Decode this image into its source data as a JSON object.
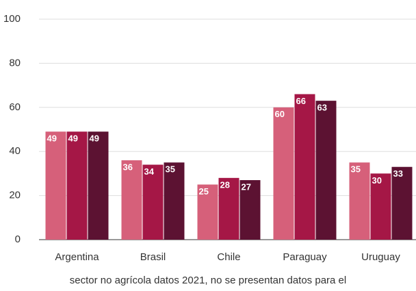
{
  "chart_data": {
    "type": "bar",
    "categories": [
      "Argentina",
      "Brasil",
      "Chile",
      "Paraguay",
      "Uruguay"
    ],
    "series": [
      {
        "color": "#d6607a",
        "values": [
          49,
          36,
          25,
          60,
          35
        ]
      },
      {
        "color": "#a51746",
        "values": [
          49,
          34,
          28,
          66,
          30
        ]
      },
      {
        "color": "#5c1232",
        "values": [
          49,
          35,
          27,
          63,
          33
        ]
      }
    ],
    "ylim": [
      0,
      100
    ],
    "yticks": [
      0,
      20,
      40,
      60,
      80,
      100
    ],
    "grid": true,
    "note": "sector no agrícola datos 2021, no se presentan datos para el"
  }
}
